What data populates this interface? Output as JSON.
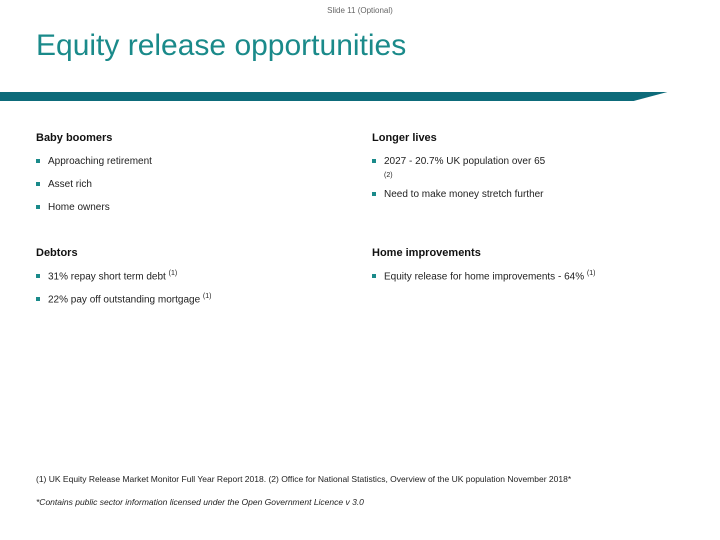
{
  "slide_label": "Slide 11 (Optional)",
  "title": "Equity release opportunities",
  "colors": {
    "title": "#1a8a8a",
    "divider": "#0d6b7a",
    "bullet": "#1a8a8a",
    "background": "#ffffff",
    "text": "#222222"
  },
  "top_left": {
    "heading": "Baby boomers",
    "items": [
      "Approaching retirement",
      "Asset rich",
      "Home owners"
    ]
  },
  "top_right": {
    "heading": "Longer lives",
    "items": [
      {
        "text": "2027 - 20.7% UK population over 65",
        "sup": "",
        "sub": "(2)"
      },
      {
        "text": "Need to make money stretch further",
        "sup": "",
        "sub": ""
      }
    ]
  },
  "bottom_left": {
    "heading": "Debtors",
    "items": [
      {
        "text": "31% repay short term debt ",
        "sup": "(1)"
      },
      {
        "text": "22% pay off outstanding mortgage ",
        "sup": "(1)"
      }
    ]
  },
  "bottom_right": {
    "heading": "Home improvements",
    "items": [
      {
        "text": "Equity release for home improvements - 64% ",
        "sup": "(1)"
      }
    ]
  },
  "footnote1": "(1) UK Equity Release Market Monitor Full Year Report 2018. (2) Office for National Statistics, Overview of the UK population November 2018*",
  "footnote2": "*Contains public sector information licensed under the Open Government Licence v 3.0"
}
